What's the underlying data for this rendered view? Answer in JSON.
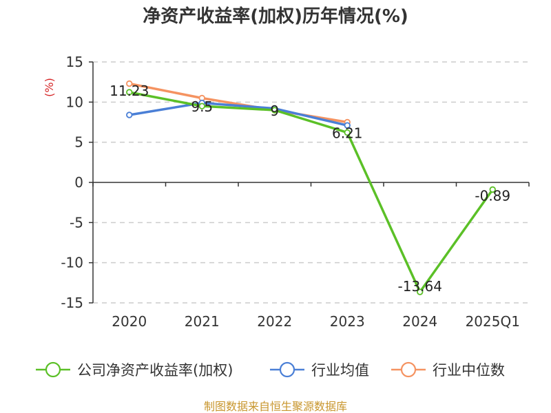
{
  "chart_data": {
    "type": "line",
    "title": "净资产收益率(加权)历年情况(%)",
    "unit_label": "(%)",
    "categories": [
      "2020",
      "2021",
      "2022",
      "2023",
      "2024",
      "2025Q1"
    ],
    "ylim": [
      -15,
      15
    ],
    "yticks": [
      15,
      10,
      5,
      0,
      -5,
      -10,
      -15
    ],
    "grid": true,
    "legend_position": "bottom",
    "series": [
      {
        "name": "公司净资产收益率(加权)",
        "color": "#5bc027",
        "values": [
          11.23,
          9.5,
          9,
          6.21,
          -13.64,
          -0.89
        ],
        "labels": [
          "11.23",
          "9.5",
          "9",
          "6.21",
          "-13.64",
          "-0.89"
        ]
      },
      {
        "name": "行业均值",
        "color": "#4a7fd6",
        "values": [
          8.4,
          9.9,
          9.2,
          7.1,
          null,
          null
        ]
      },
      {
        "name": "行业中位数",
        "color": "#f59361",
        "values": [
          12.3,
          10.5,
          9.0,
          7.5,
          null,
          null
        ]
      }
    ]
  },
  "footer": {
    "source": "制图数据来自恒生聚源数据库"
  }
}
